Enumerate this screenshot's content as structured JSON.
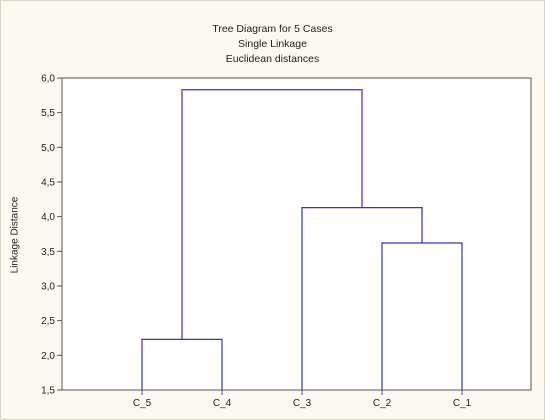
{
  "chart_data": {
    "type": "dendrogram",
    "title": "Tree Diagram for 5 Cases",
    "subtitle": "Single Linkage",
    "subtitle2": "Euclidean distances",
    "ylabel": "Linkage Distance",
    "xlabel": "",
    "ylim": [
      1.5,
      6.0
    ],
    "yticks": [
      "1,5",
      "2,0",
      "2,5",
      "3,0",
      "3,5",
      "4,0",
      "4,5",
      "5,0",
      "5,5",
      "6,0"
    ],
    "leaves": [
      "C_5",
      "C_4",
      "C_3",
      "C_2",
      "C_1"
    ],
    "merges": [
      {
        "left": "C_5",
        "right": "C_4",
        "height": 2.23
      },
      {
        "left": "C_2",
        "right": "C_1",
        "height": 3.62
      },
      {
        "left": "C_3",
        "right": "C_2+C_1",
        "height": 4.13
      },
      {
        "left": "C_5+C_4",
        "right": "C_3+C_2+C_1",
        "height": 5.83
      }
    ],
    "line_color": "#3333cc",
    "grid": false
  }
}
